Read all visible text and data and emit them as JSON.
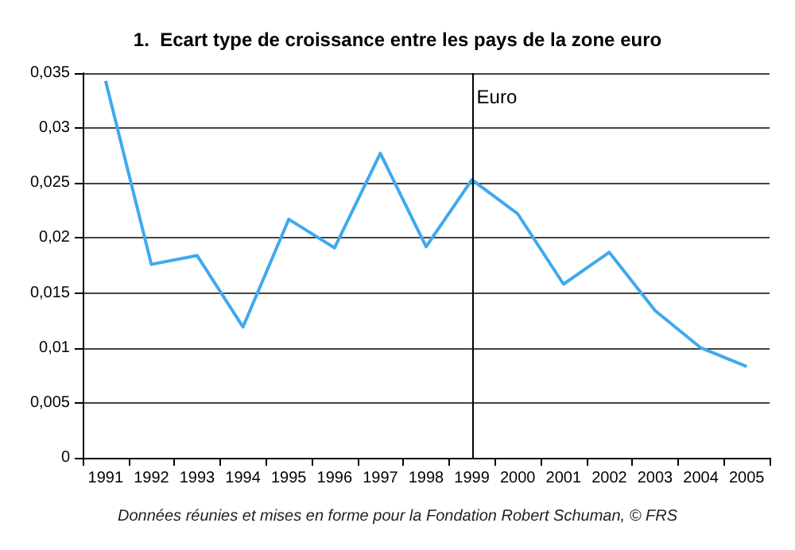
{
  "chart_data": {
    "type": "line",
    "title": "1.  Ecart type de croissance entre les pays de la zone euro",
    "categories": [
      "1991",
      "1992",
      "1993",
      "1994",
      "1995",
      "1996",
      "1997",
      "1998",
      "1999",
      "2000",
      "2001",
      "2002",
      "2003",
      "2004",
      "2005"
    ],
    "series": [
      {
        "color": "#3fa9ee",
        "values": [
          0.0343,
          0.0176,
          0.0184,
          0.0119,
          0.0217,
          0.0191,
          0.0277,
          0.0192,
          0.0253,
          0.0222,
          0.0158,
          0.0187,
          0.0134,
          0.01,
          0.0083
        ]
      }
    ],
    "ylim": [
      0,
      0.035
    ],
    "yticks": [
      {
        "value": 0,
        "label": "0"
      },
      {
        "value": 0.005,
        "label": "0,005"
      },
      {
        "value": 0.01,
        "label": "0,01"
      },
      {
        "value": 0.015,
        "label": "0,015"
      },
      {
        "value": 0.02,
        "label": "0,02"
      },
      {
        "value": 0.025,
        "label": "0,025"
      },
      {
        "value": 0.03,
        "label": "0,03"
      },
      {
        "value": 0.035,
        "label": "0,035"
      }
    ],
    "grid": "y",
    "marker": "none",
    "line_style": "solid",
    "ref_lines": [
      {
        "axis": "x",
        "value": "1999",
        "label": "Euro",
        "color": "#000000"
      }
    ],
    "annotations": [
      "Données réunies et mises en forme pour la Fondation Robert Schuman, © FRS"
    ]
  }
}
